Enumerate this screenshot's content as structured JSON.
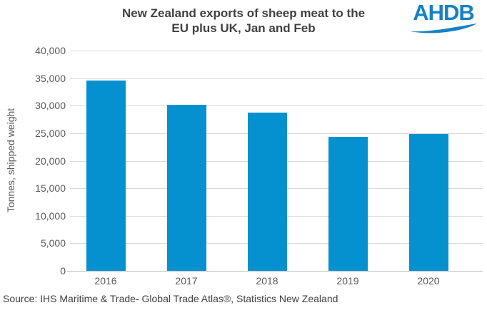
{
  "title": {
    "text": "New Zealand exports of sheep meat to the EU plus UK, Jan and Feb",
    "lines": [
      "New Zealand exports of sheep meat to the",
      "EU plus UK, Jan and Feb"
    ]
  },
  "logo": {
    "text": "AHDB"
  },
  "source": {
    "text": "Source: IHS Maritime & Trade- Global Trade Atlas®, Statistics New Zealand"
  },
  "chart_data": {
    "type": "bar",
    "title": "New Zealand exports of sheep meat to the EU plus UK, Jan and Feb",
    "categories": [
      "2016",
      "2017",
      "2018",
      "2019",
      "2020"
    ],
    "values": [
      34600,
      30200,
      28800,
      24400,
      24900
    ],
    "xlabel": "",
    "ylabel": "Tonnes, shipped weight",
    "ylim": [
      0,
      40000
    ],
    "ytick_step": 5000,
    "ytick_labels": [
      "0",
      "5,000",
      "10,000",
      "15,000",
      "20,000",
      "25,000",
      "30,000",
      "35,000",
      "40,000"
    ],
    "grid": true,
    "legend": false,
    "bar_color": "#0590d0"
  },
  "colors": {
    "bar": "#0590d0",
    "logo_blue": "#1581c5",
    "title_text": "#404040",
    "axis_text": "#595959",
    "gridline": "#d9d9d9",
    "axis_line": "#bfbfbf",
    "background": "#ffffff"
  }
}
